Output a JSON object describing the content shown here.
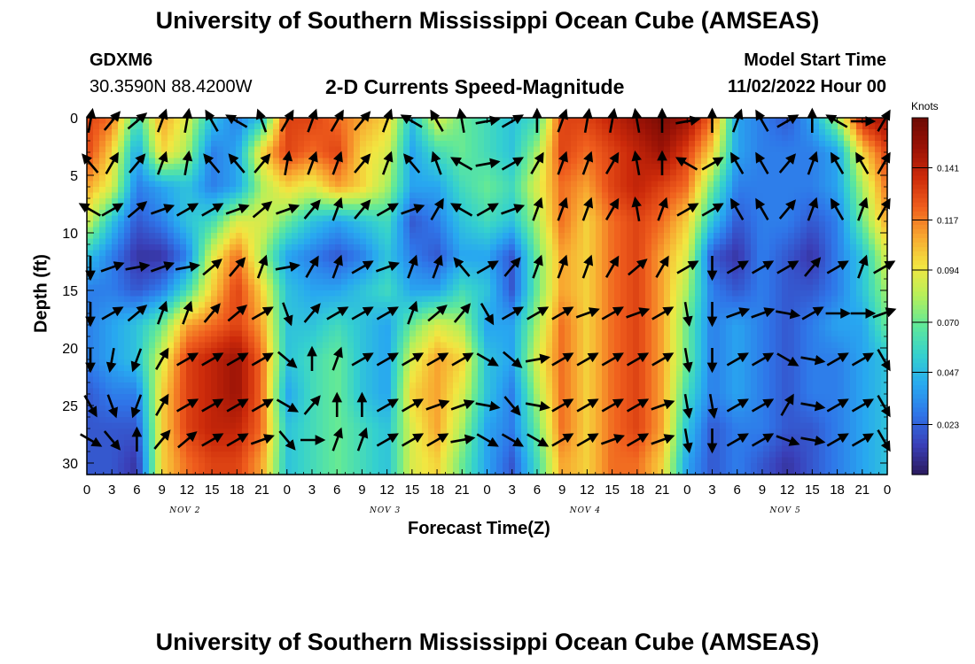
{
  "header": {
    "title": "University of Southern Mississippi Ocean Cube (AMSEAS)",
    "station_id": "GDXM6",
    "station_coords": "30.3590N  88.4200W",
    "plot_title": "2-D Currents Speed-Magnitude",
    "model_start_label": "Model Start Time",
    "model_start_value": "11/02/2022 Hour 00"
  },
  "footer": {
    "title": "University of Southern Mississippi Ocean Cube (AMSEAS)"
  },
  "colors": {
    "palette": [
      "#2b1a5e",
      "#3a3fb8",
      "#2f74e8",
      "#28a8f0",
      "#34d0cf",
      "#5fe89a",
      "#b6f05a",
      "#f2e641",
      "#f8a730",
      "#ef5d1d",
      "#cc2a0a",
      "#9a1206",
      "#6b0a03"
    ]
  },
  "chart_data": {
    "type": "heatmap",
    "xlabel": "Forecast Time(Z)",
    "ylabel": "Depth (ft)",
    "x_ticks": [
      "0",
      "3",
      "6",
      "9",
      "12",
      "15",
      "18",
      "21",
      "0",
      "3",
      "6",
      "9",
      "12",
      "15",
      "18",
      "21",
      "0",
      "3",
      "6",
      "9",
      "12",
      "15",
      "18",
      "21",
      "0",
      "3",
      "6",
      "9",
      "12",
      "15",
      "18",
      "21",
      "0"
    ],
    "day_labels": [
      "NOV 2",
      "NOV 3",
      "NOV 4",
      "NOV 5"
    ],
    "y_ticks": [
      "0",
      "5",
      "10",
      "15",
      "20",
      "25",
      "30"
    ],
    "ylim": [
      0,
      31
    ],
    "x_range_hours": [
      0,
      96
    ],
    "colorbar": {
      "unit": "Knots",
      "ticks": [
        "0.023",
        "0.047",
        "0.070",
        "0.094",
        "0.117",
        "0.141"
      ],
      "range": [
        0,
        0.164
      ]
    },
    "depths_ft": [
      0,
      3,
      6,
      9,
      12,
      15,
      18,
      21,
      24,
      27,
      30
    ],
    "hours": [
      0,
      3,
      6,
      9,
      12,
      15,
      18,
      21,
      24,
      27,
      30,
      33,
      36,
      39,
      42,
      45,
      48,
      51,
      54,
      57,
      60,
      63,
      66,
      69,
      72,
      75,
      78,
      81,
      84,
      87,
      90,
      93,
      96
    ],
    "speed_knots": [
      [
        0.13,
        0.12,
        0.06,
        0.11,
        0.09,
        0.05,
        0.03,
        0.05,
        0.13,
        0.13,
        0.12,
        0.11,
        0.1,
        0.05,
        0.09,
        0.07,
        0.06,
        0.05,
        0.06,
        0.13,
        0.13,
        0.14,
        0.15,
        0.16,
        0.15,
        0.12,
        0.04,
        0.03,
        0.02,
        0.04,
        0.08,
        0.14,
        0.15
      ],
      [
        0.13,
        0.1,
        0.04,
        0.1,
        0.08,
        0.03,
        0.04,
        0.1,
        0.13,
        0.12,
        0.13,
        0.1,
        0.09,
        0.04,
        0.06,
        0.07,
        0.06,
        0.05,
        0.08,
        0.13,
        0.12,
        0.13,
        0.14,
        0.15,
        0.13,
        0.1,
        0.04,
        0.03,
        0.03,
        0.03,
        0.04,
        0.1,
        0.13
      ],
      [
        0.11,
        0.09,
        0.03,
        0.04,
        0.05,
        0.03,
        0.04,
        0.08,
        0.1,
        0.09,
        0.11,
        0.1,
        0.08,
        0.04,
        0.04,
        0.06,
        0.07,
        0.06,
        0.09,
        0.12,
        0.11,
        0.13,
        0.14,
        0.13,
        0.12,
        0.07,
        0.03,
        0.03,
        0.03,
        0.03,
        0.04,
        0.08,
        0.12
      ],
      [
        0.09,
        0.05,
        0.02,
        0.03,
        0.05,
        0.06,
        0.09,
        0.09,
        0.07,
        0.05,
        0.04,
        0.05,
        0.06,
        0.02,
        0.03,
        0.05,
        0.06,
        0.05,
        0.08,
        0.12,
        0.1,
        0.12,
        0.13,
        0.12,
        0.1,
        0.05,
        0.02,
        0.03,
        0.03,
        0.02,
        0.03,
        0.07,
        0.11
      ],
      [
        0.05,
        0.03,
        0.01,
        0.01,
        0.03,
        0.09,
        0.12,
        0.08,
        0.04,
        0.03,
        0.02,
        0.03,
        0.05,
        0.03,
        0.02,
        0.04,
        0.04,
        0.02,
        0.07,
        0.11,
        0.1,
        0.12,
        0.13,
        0.11,
        0.09,
        0.02,
        0.01,
        0.03,
        0.02,
        0.01,
        0.03,
        0.05,
        0.09
      ],
      [
        0.03,
        0.03,
        0.02,
        0.03,
        0.06,
        0.1,
        0.13,
        0.1,
        0.05,
        0.04,
        0.04,
        0.05,
        0.06,
        0.04,
        0.04,
        0.06,
        0.05,
        0.02,
        0.07,
        0.11,
        0.1,
        0.12,
        0.13,
        0.11,
        0.08,
        0.03,
        0.02,
        0.03,
        0.02,
        0.02,
        0.03,
        0.05,
        0.08
      ],
      [
        0.03,
        0.04,
        0.05,
        0.07,
        0.11,
        0.12,
        0.13,
        0.11,
        0.05,
        0.05,
        0.06,
        0.05,
        0.04,
        0.07,
        0.09,
        0.08,
        0.04,
        0.04,
        0.08,
        0.12,
        0.1,
        0.12,
        0.13,
        0.11,
        0.07,
        0.03,
        0.04,
        0.03,
        0.02,
        0.03,
        0.04,
        0.04,
        0.07
      ],
      [
        0.03,
        0.04,
        0.05,
        0.09,
        0.13,
        0.14,
        0.15,
        0.12,
        0.05,
        0.06,
        0.07,
        0.05,
        0.04,
        0.09,
        0.11,
        0.1,
        0.05,
        0.04,
        0.09,
        0.12,
        0.1,
        0.12,
        0.13,
        0.11,
        0.07,
        0.03,
        0.04,
        0.03,
        0.02,
        0.03,
        0.03,
        0.04,
        0.05
      ],
      [
        0.02,
        0.03,
        0.03,
        0.1,
        0.13,
        0.14,
        0.15,
        0.12,
        0.04,
        0.06,
        0.07,
        0.05,
        0.04,
        0.1,
        0.11,
        0.09,
        0.05,
        0.03,
        0.08,
        0.12,
        0.1,
        0.12,
        0.13,
        0.11,
        0.06,
        0.03,
        0.04,
        0.03,
        0.02,
        0.03,
        0.03,
        0.04,
        0.05
      ],
      [
        0.02,
        0.02,
        0.02,
        0.1,
        0.13,
        0.14,
        0.14,
        0.12,
        0.05,
        0.06,
        0.07,
        0.06,
        0.05,
        0.09,
        0.11,
        0.08,
        0.04,
        0.03,
        0.07,
        0.12,
        0.1,
        0.12,
        0.13,
        0.11,
        0.05,
        0.02,
        0.03,
        0.03,
        0.02,
        0.02,
        0.03,
        0.04,
        0.05
      ],
      [
        0.02,
        0.02,
        0.01,
        0.1,
        0.12,
        0.13,
        0.13,
        0.11,
        0.05,
        0.06,
        0.07,
        0.06,
        0.05,
        0.09,
        0.1,
        0.07,
        0.04,
        0.02,
        0.06,
        0.11,
        0.1,
        0.12,
        0.12,
        0.1,
        0.04,
        0.02,
        0.03,
        0.02,
        0.01,
        0.02,
        0.03,
        0.04,
        0.05
      ]
    ],
    "vectors": {
      "depths_ft": [
        0,
        4,
        8,
        13,
        17,
        21,
        25,
        28
      ],
      "hours": [
        0,
        3,
        6,
        9,
        12,
        15,
        18,
        21,
        24,
        27,
        30,
        33,
        36,
        39,
        42,
        45,
        48,
        51,
        54,
        57,
        60,
        63,
        66,
        69,
        72,
        75,
        78,
        81,
        84,
        87,
        90,
        93,
        96
      ],
      "direction_deg": [
        [
          10,
          40,
          50,
          20,
          10,
          330,
          300,
          340,
          30,
          20,
          30,
          40,
          20,
          300,
          330,
          350,
          80,
          60,
          0,
          20,
          10,
          10,
          350,
          0,
          80,
          0,
          20,
          330,
          60,
          0,
          300,
          90,
          30
        ],
        [
          320,
          30,
          40,
          20,
          10,
          320,
          320,
          40,
          10,
          20,
          20,
          40,
          20,
          320,
          340,
          300,
          80,
          60,
          30,
          20,
          20,
          30,
          350,
          0,
          300,
          60,
          330,
          330,
          40,
          20,
          330,
          330,
          30
        ],
        [
          300,
          60,
          50,
          70,
          60,
          60,
          70,
          50,
          70,
          40,
          20,
          40,
          60,
          70,
          30,
          300,
          60,
          70,
          20,
          20,
          20,
          30,
          350,
          20,
          60,
          60,
          330,
          330,
          40,
          20,
          330,
          20,
          30
        ],
        [
          180,
          70,
          80,
          70,
          80,
          50,
          40,
          20,
          80,
          30,
          20,
          60,
          70,
          20,
          20,
          320,
          60,
          40,
          20,
          20,
          20,
          30,
          50,
          30,
          60,
          180,
          60,
          60,
          60,
          40,
          60,
          20,
          60
        ],
        [
          180,
          60,
          50,
          20,
          20,
          40,
          50,
          60,
          160,
          40,
          60,
          60,
          60,
          20,
          50,
          40,
          150,
          60,
          60,
          60,
          70,
          60,
          70,
          60,
          170,
          180,
          70,
          70,
          100,
          60,
          90,
          90,
          70
        ],
        [
          180,
          190,
          200,
          30,
          60,
          60,
          60,
          60,
          130,
          0,
          20,
          60,
          60,
          60,
          60,
          60,
          120,
          130,
          80,
          60,
          60,
          60,
          60,
          60,
          170,
          180,
          60,
          60,
          120,
          100,
          60,
          60,
          150
        ],
        [
          150,
          160,
          200,
          30,
          60,
          60,
          60,
          60,
          120,
          40,
          0,
          0,
          60,
          60,
          70,
          70,
          100,
          140,
          100,
          60,
          60,
          60,
          60,
          70,
          170,
          170,
          60,
          60,
          30,
          100,
          60,
          60,
          150
        ],
        [
          120,
          140,
          0,
          40,
          50,
          60,
          60,
          70,
          140,
          90,
          20,
          20,
          60,
          60,
          60,
          80,
          120,
          120,
          120,
          60,
          60,
          70,
          60,
          70,
          170,
          180,
          60,
          60,
          110,
          100,
          60,
          60,
          150
        ]
      ]
    }
  }
}
